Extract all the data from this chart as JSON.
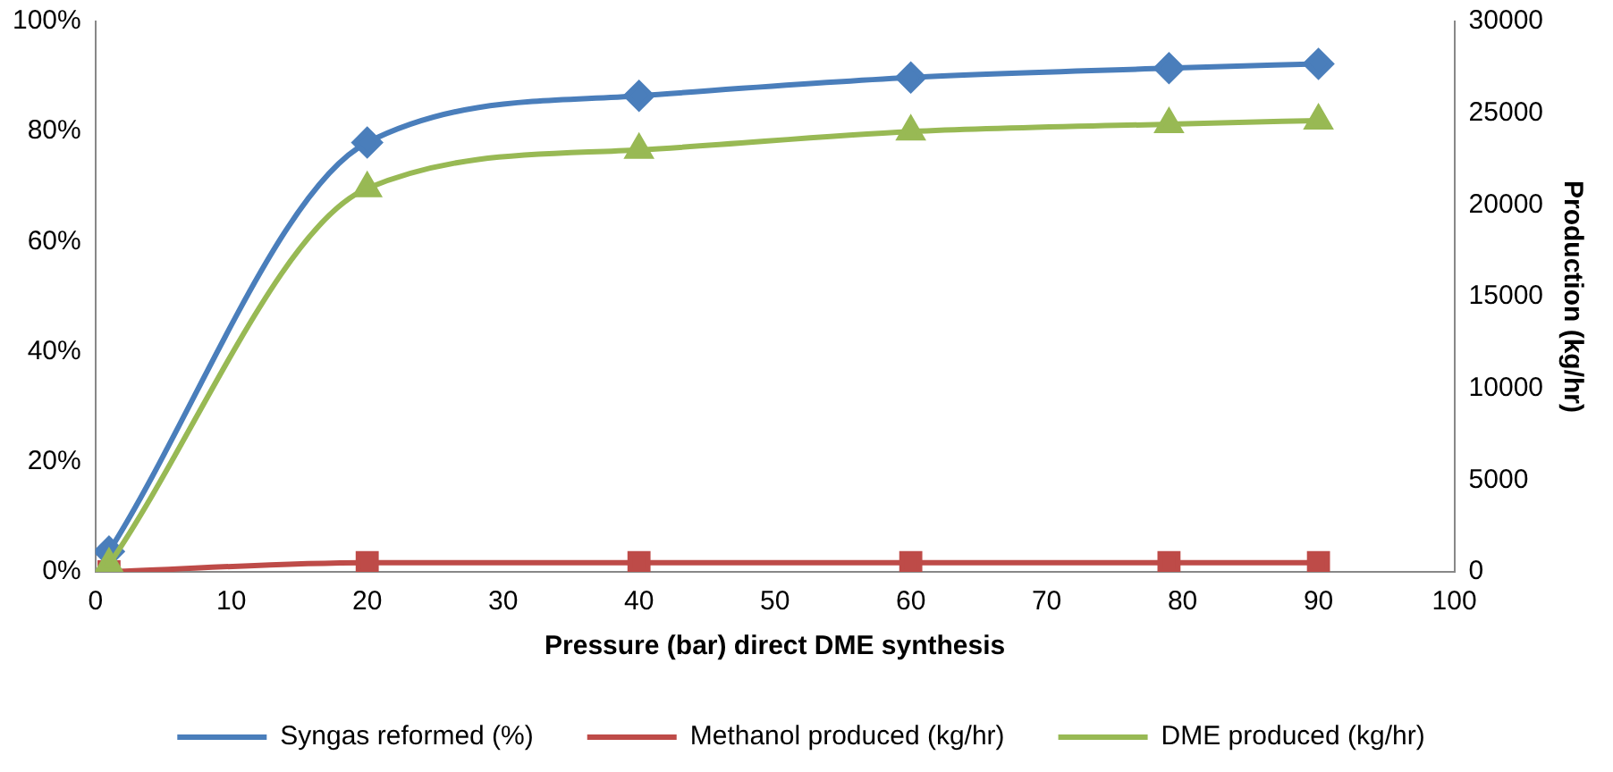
{
  "chart_data": {
    "type": "line",
    "xlabel": "Pressure (bar) direct DME synthesis",
    "y2label": "Production (kg/hr)",
    "x": [
      1,
      20,
      40,
      60,
      79,
      90
    ],
    "series": [
      {
        "name": "Syngas reformed (%)",
        "color": "#4a7ebb",
        "marker": "diamond",
        "values": [
          3.7,
          78,
          86.5,
          89.8,
          91.5,
          92.3
        ]
      },
      {
        "name": "Methanol produced (kg/hr)",
        "color": "#be4b48",
        "marker": "square",
        "axis": "y2",
        "values": [
          0,
          500,
          500,
          500,
          500,
          500
        ]
      },
      {
        "name": "DME produced (kg/hr)",
        "color": "#98b954",
        "marker": "triangle",
        "axis": "y2",
        "values": [
          400,
          20900,
          23000,
          24000,
          24400,
          24600
        ]
      }
    ],
    "xlim": [
      0,
      100
    ],
    "xticks": [
      0,
      10,
      20,
      30,
      40,
      50,
      60,
      70,
      80,
      90,
      100
    ],
    "ylim": [
      0,
      100
    ],
    "yticks": [
      {
        "value": 0,
        "label": "0%"
      },
      {
        "value": 20,
        "label": "20%"
      },
      {
        "value": 40,
        "label": "40%"
      },
      {
        "value": 60,
        "label": "60%"
      },
      {
        "value": 80,
        "label": "80%"
      },
      {
        "value": 100,
        "label": "100%"
      }
    ],
    "y2lim": [
      0,
      30000
    ],
    "y2ticks": [
      0,
      5000,
      10000,
      15000,
      20000,
      25000,
      30000
    ],
    "grid": false,
    "legend": "bottom",
    "line_style": "solid"
  }
}
